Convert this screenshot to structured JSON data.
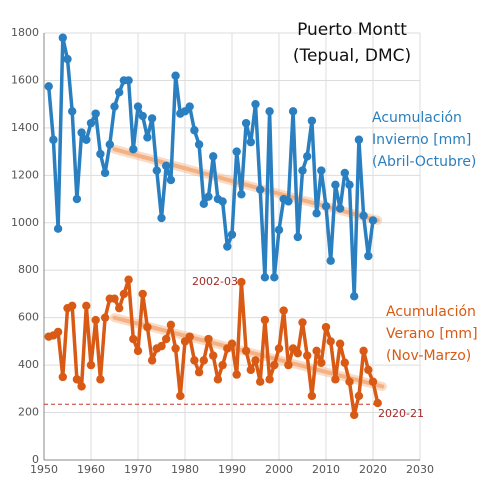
{
  "chart_data": {
    "type": "line",
    "title": [
      "Puerto Montt",
      "(Tepual, DMC)"
    ],
    "x": [
      1951,
      1952,
      1953,
      1954,
      1955,
      1956,
      1957,
      1958,
      1959,
      1960,
      1961,
      1962,
      1963,
      1964,
      1965,
      1966,
      1967,
      1968,
      1969,
      1970,
      1971,
      1972,
      1973,
      1974,
      1975,
      1976,
      1977,
      1978,
      1979,
      1980,
      1981,
      1982,
      1983,
      1984,
      1985,
      1986,
      1987,
      1988,
      1989,
      1990,
      1991,
      1992,
      1993,
      1994,
      1995,
      1996,
      1997,
      1998,
      1999,
      2000,
      2001,
      2002,
      2003,
      2004,
      2005,
      2006,
      2007,
      2008,
      2009,
      2010,
      2011,
      2012,
      2013,
      2014,
      2015,
      2016,
      2017,
      2018,
      2019,
      2020,
      2021
    ],
    "series": [
      {
        "name": [
          "Acumulación",
          "Invierno [mm]",
          "(Abril-Octubre)"
        ],
        "color": "#2a7fc0",
        "values": [
          1575,
          1350,
          975,
          1780,
          1690,
          1470,
          1100,
          1380,
          1350,
          1420,
          1460,
          1290,
          1210,
          1330,
          1490,
          1550,
          1600,
          1600,
          1310,
          1490,
          1450,
          1360,
          1440,
          1220,
          1020,
          1240,
          1180,
          1620,
          1460,
          1470,
          1490,
          1390,
          1330,
          1080,
          1110,
          1280,
          1100,
          1090,
          900,
          950,
          1300,
          1120,
          1420,
          1340,
          1500,
          1140,
          770,
          1470,
          770,
          970,
          1100,
          1090,
          1470,
          940,
          1220,
          1280,
          1430,
          1040,
          1220,
          1070,
          840,
          1160,
          1060,
          1210,
          1160,
          690,
          1350,
          1030,
          860,
          1010,
          null
        ],
        "trend": {
          "x": [
            1965,
            2021
          ],
          "values": [
            1310,
            1010
          ]
        }
      },
      {
        "name": [
          "Acumulación",
          "Verano [mm]",
          "(Nov-Marzo)"
        ],
        "color": "#d85a14",
        "values": [
          520,
          525,
          540,
          350,
          640,
          650,
          340,
          310,
          650,
          400,
          590,
          340,
          600,
          680,
          680,
          640,
          700,
          760,
          510,
          460,
          700,
          560,
          420,
          470,
          480,
          510,
          570,
          470,
          270,
          500,
          520,
          420,
          370,
          420,
          510,
          440,
          340,
          400,
          470,
          490,
          360,
          750,
          460,
          380,
          420,
          330,
          590,
          340,
          400,
          470,
          630,
          400,
          470,
          450,
          580,
          440,
          270,
          460,
          410,
          560,
          500,
          340,
          490,
          410,
          330,
          190,
          270,
          460,
          380,
          330,
          240
        ],
        "trend": {
          "x": [
            1965,
            2022
          ],
          "values": [
            600,
            310
          ]
        }
      }
    ],
    "trend_color": "#f4b183",
    "reference_line": {
      "value": 235,
      "color": "#c0392b"
    },
    "annotations": [
      "2002-03",
      "2020-21"
    ],
    "annotation_color": "#a52a2a",
    "xlim": [
      1950,
      2030
    ],
    "xticks": [
      1950,
      1960,
      1970,
      1980,
      1990,
      2000,
      2010,
      2020,
      2030
    ],
    "ylim": [
      0,
      1800
    ],
    "yticks": [
      0,
      200,
      400,
      600,
      800,
      1000,
      1200,
      1400,
      1600,
      1800
    ],
    "grid": true
  }
}
